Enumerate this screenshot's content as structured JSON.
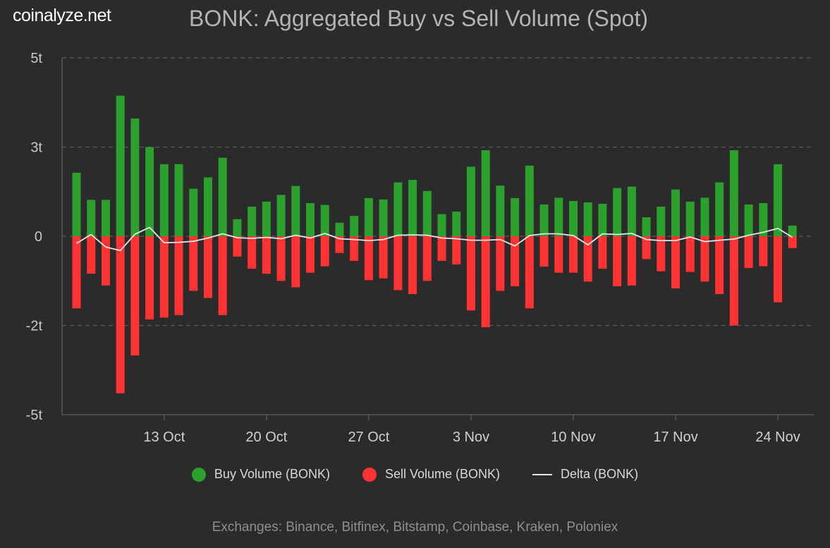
{
  "brand": "coinalyze.net",
  "footer": "Exchanges: Binance, Bitfinex, Bitstamp, Coinbase, Kraken, Poloniex",
  "colors": {
    "buy": "#2ca02c",
    "sell": "#ff3333",
    "delta": "#e6e6e6",
    "background": "#2b2b2b",
    "grid": "#5a5a5a"
  },
  "chart_data": {
    "type": "bar",
    "title": "BONK: Aggregated Buy vs Sell Volume (Spot)",
    "xlabel": "",
    "ylabel": "",
    "grid": true,
    "legend_position": "bottom",
    "ylim": [
      -5,
      5
    ],
    "yticks": [
      {
        "value": 5,
        "label": "5t"
      },
      {
        "value": 2.5,
        "label": "3t"
      },
      {
        "value": 0,
        "label": "0"
      },
      {
        "value": -2.5,
        "label": "-2t"
      },
      {
        "value": -5,
        "label": "-5t"
      }
    ],
    "xticks": [
      {
        "index": 6,
        "label": "13 Oct"
      },
      {
        "index": 13,
        "label": "20 Oct"
      },
      {
        "index": 20,
        "label": "27 Oct"
      },
      {
        "index": 27,
        "label": "3 Nov"
      },
      {
        "index": 34,
        "label": "10 Nov"
      },
      {
        "index": 41,
        "label": "17 Nov"
      },
      {
        "index": 48,
        "label": "24 Nov"
      }
    ],
    "series": [
      {
        "name": "Buy Volume (BONK)",
        "values": [
          1.78,
          1.02,
          1.02,
          3.94,
          3.3,
          2.5,
          2.02,
          2.02,
          1.33,
          1.65,
          2.2,
          0.48,
          0.83,
          0.97,
          1.16,
          1.41,
          0.93,
          0.88,
          0.38,
          0.57,
          1.07,
          1.03,
          1.51,
          1.58,
          1.27,
          0.62,
          0.69,
          1.95,
          2.41,
          1.42,
          1.07,
          1.98,
          0.89,
          1.08,
          0.99,
          0.95,
          0.91,
          1.35,
          1.39,
          0.53,
          0.83,
          1.31,
          0.97,
          1.08,
          1.51,
          2.41,
          0.89,
          0.93,
          2.02,
          0.3
        ]
      },
      {
        "name": "Sell Volume (BONK)",
        "values": [
          -2.02,
          -1.05,
          -1.38,
          -4.4,
          -3.34,
          -2.33,
          -2.28,
          -2.21,
          -1.53,
          -1.73,
          -2.21,
          -0.57,
          -0.91,
          -1.05,
          -1.25,
          -1.43,
          -1.02,
          -0.84,
          -0.47,
          -0.69,
          -1.23,
          -1.18,
          -1.51,
          -1.62,
          -1.25,
          -0.69,
          -0.79,
          -2.08,
          -2.55,
          -1.53,
          -1.4,
          -2.02,
          -0.85,
          -1.02,
          -1.02,
          -1.27,
          -0.91,
          -1.4,
          -1.38,
          -0.64,
          -0.98,
          -1.46,
          -1.0,
          -1.27,
          -1.62,
          -2.5,
          -0.89,
          -0.84,
          -1.85,
          -0.33
        ]
      },
      {
        "name": "Delta (BONK)",
        "values": [
          -0.2,
          0.05,
          -0.3,
          -0.4,
          0.06,
          0.25,
          -0.18,
          -0.17,
          -0.14,
          -0.05,
          0.07,
          -0.04,
          -0.06,
          -0.03,
          -0.07,
          0.03,
          -0.05,
          0.08,
          -0.07,
          -0.09,
          -0.12,
          -0.09,
          0.03,
          0.04,
          0.03,
          -0.05,
          -0.07,
          -0.11,
          -0.11,
          -0.09,
          -0.27,
          0.02,
          0.07,
          0.07,
          0.02,
          -0.24,
          0.07,
          0.05,
          0.08,
          -0.09,
          -0.12,
          -0.12,
          -0.02,
          -0.15,
          -0.11,
          -0.08,
          0.03,
          0.11,
          0.22,
          -0.03
        ]
      }
    ]
  }
}
